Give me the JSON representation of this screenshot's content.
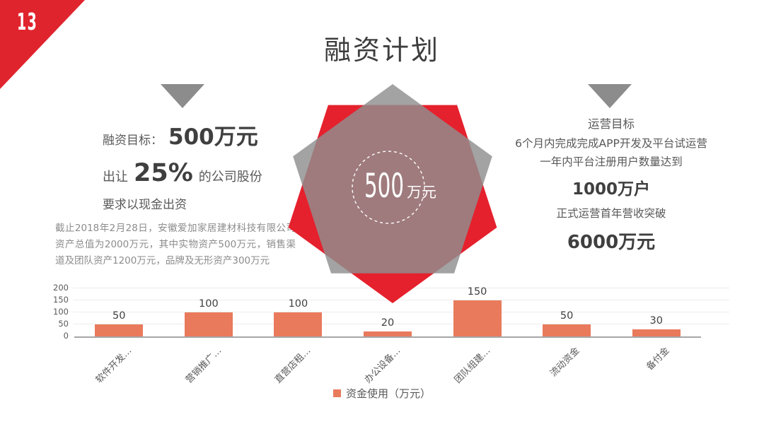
{
  "slide": {
    "page_number": "13",
    "title": "融资计划"
  },
  "left_block": {
    "label": "融资目标：",
    "value": "500万元",
    "line2_prefix": "出让",
    "line2_value": "25%",
    "line2_suffix": "的公司股份",
    "line3": "要求以现金出资",
    "paragraph": "截止2018年2月28日，安徽爱加家居建材科技有限公司资产总值为2000万元，其中实物资产500万元，销售渠道及团队资产1200万元，品牌及无形资产300万元"
  },
  "center_graphic": {
    "value": "500",
    "unit": "万元"
  },
  "right_block": {
    "heading": "运营目标",
    "line1": "6个月内完成完成APP开发及平台试运营",
    "line2": "一年内平台注册用户数量达到",
    "value1": "1000万户",
    "line3": "正式运营首年营收突破",
    "value2": "6000万元"
  },
  "chart_data": {
    "type": "bar",
    "categories": [
      "软件开发…",
      "营销推广…",
      "直营店租…",
      "办公设备…",
      "团队组建…",
      "流动资金",
      "备付金"
    ],
    "values": [
      50,
      100,
      100,
      20,
      150,
      50,
      30
    ],
    "series_name": "资金使用（万元）",
    "title": "",
    "xlabel": "",
    "ylabel": "",
    "ylim": [
      0,
      200
    ],
    "yticks": [
      0,
      50,
      100,
      150,
      200
    ],
    "grid": true,
    "legend_position": "bottom",
    "bar_color": "#e97a5c"
  },
  "colors": {
    "accent_red": "#e0242e",
    "shape_gray": "#8f8f8f",
    "bar": "#e97a5c",
    "text_dark": "#3f3f3f",
    "text_gray": "#8c8c8c"
  }
}
